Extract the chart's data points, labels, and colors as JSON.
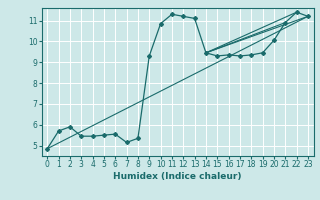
{
  "title": "",
  "xlabel": "Humidex (Indice chaleur)",
  "background_color": "#cde8e8",
  "grid_color": "#ffffff",
  "line_color": "#1a6b6b",
  "xlim": [
    -0.5,
    23.5
  ],
  "ylim": [
    4.5,
    11.6
  ],
  "xticks": [
    0,
    1,
    2,
    3,
    4,
    5,
    6,
    7,
    8,
    9,
    10,
    11,
    12,
    13,
    14,
    15,
    16,
    17,
    18,
    19,
    20,
    21,
    22,
    23
  ],
  "yticks": [
    5,
    6,
    7,
    8,
    9,
    10,
    11
  ],
  "series": [
    [
      0,
      4.85
    ],
    [
      1,
      5.7
    ],
    [
      2,
      5.9
    ],
    [
      3,
      5.45
    ],
    [
      4,
      5.45
    ],
    [
      5,
      5.5
    ],
    [
      6,
      5.55
    ],
    [
      7,
      5.15
    ],
    [
      8,
      5.35
    ],
    [
      9,
      9.3
    ],
    [
      10,
      10.85
    ],
    [
      11,
      11.3
    ],
    [
      12,
      11.2
    ],
    [
      13,
      11.1
    ],
    [
      14,
      9.45
    ],
    [
      15,
      9.3
    ],
    [
      16,
      9.35
    ],
    [
      17,
      9.3
    ],
    [
      18,
      9.35
    ],
    [
      19,
      9.45
    ],
    [
      20,
      10.05
    ],
    [
      21,
      10.9
    ],
    [
      22,
      11.4
    ],
    [
      23,
      11.2
    ]
  ],
  "diagonal_line": [
    [
      0,
      4.85
    ],
    [
      23,
      11.2
    ]
  ],
  "extra_lines": [
    [
      [
        14,
        9.45
      ],
      [
        23,
        11.2
      ]
    ],
    [
      [
        14,
        9.45
      ],
      [
        22,
        11.4
      ]
    ],
    [
      [
        14,
        9.45
      ],
      [
        21,
        10.9
      ]
    ]
  ],
  "xlabel_fontsize": 6.5,
  "tick_fontsize": 5.5
}
